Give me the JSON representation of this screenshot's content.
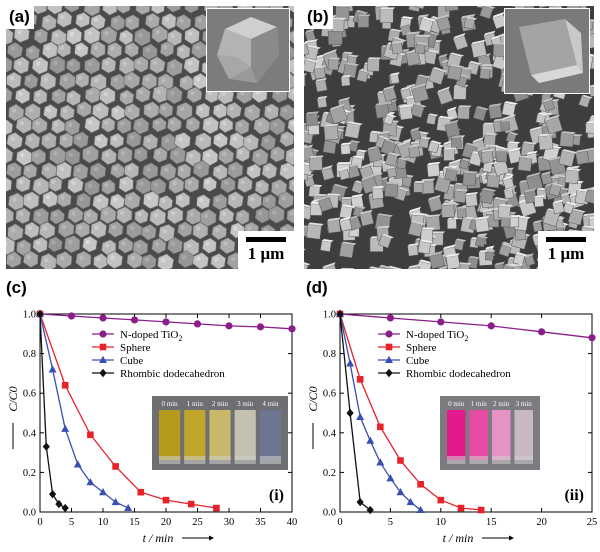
{
  "figure": {
    "panel_a": {
      "letter": "(a)",
      "scale": "1 μm"
    },
    "panel_b": {
      "letter": "(b)",
      "scale": "1 μm"
    },
    "panel_c": {
      "letter": "(c)"
    },
    "panel_d": {
      "letter": "(d)"
    }
  },
  "chart_data": [
    {
      "type": "line",
      "panel_label": "(i)",
      "xlabel": "t / min",
      "ylabel": "C/C0",
      "xlim": [
        0,
        40
      ],
      "ylim": [
        0,
        1.0
      ],
      "xticks": [
        "0",
        "5",
        "10",
        "15",
        "20",
        "25",
        "30",
        "35",
        "40"
      ],
      "yticks": [
        "0.0",
        "0.2",
        "0.4",
        "0.6",
        "0.8",
        "1.0"
      ],
      "legend_position": "top-right",
      "series": [
        {
          "name": "N-doped TiO2",
          "color": "#8b1e8b",
          "marker": "circle",
          "x": [
            0,
            5,
            10,
            15,
            20,
            25,
            30,
            35,
            40
          ],
          "y": [
            1.0,
            0.99,
            0.98,
            0.97,
            0.96,
            0.95,
            0.94,
            0.935,
            0.925
          ]
        },
        {
          "name": "Sphere",
          "color": "#e8222a",
          "marker": "square",
          "x": [
            0,
            4,
            8,
            12,
            16,
            20,
            24,
            28
          ],
          "y": [
            1.0,
            0.64,
            0.39,
            0.23,
            0.1,
            0.06,
            0.04,
            0.02
          ]
        },
        {
          "name": "Cube",
          "color": "#3a4fb4",
          "marker": "triangle",
          "x": [
            0,
            2,
            4,
            6,
            8,
            10,
            12,
            14
          ],
          "y": [
            1.0,
            0.72,
            0.42,
            0.24,
            0.15,
            0.1,
            0.05,
            0.02
          ]
        },
        {
          "name": "Rhombic dodecahedron",
          "color": "#111111",
          "marker": "diamond",
          "x": [
            0,
            1,
            2,
            3,
            4
          ],
          "y": [
            1.0,
            0.33,
            0.09,
            0.04,
            0.02
          ]
        }
      ],
      "inset": {
        "labels": [
          "0 min",
          "1 min",
          "2 min",
          "3 min",
          "4 min"
        ],
        "colors": [
          "#b59a1e",
          "#bfa52a",
          "#c9b86a",
          "#c4c0b0",
          "#6d7590"
        ],
        "background": "#6e6f72"
      }
    },
    {
      "type": "line",
      "panel_label": "(ii)",
      "xlabel": "t / min",
      "ylabel": "C/C0",
      "xlim": [
        0,
        25
      ],
      "ylim": [
        0,
        1.0
      ],
      "xticks": [
        "0",
        "5",
        "10",
        "15",
        "20",
        "25"
      ],
      "yticks": [
        "0.0",
        "0.2",
        "0.4",
        "0.6",
        "0.8",
        "1.0"
      ],
      "legend_position": "top-right",
      "series": [
        {
          "name": "N-doped TiO2",
          "color": "#8b1e8b",
          "marker": "circle",
          "x": [
            0,
            5,
            10,
            15,
            20,
            25
          ],
          "y": [
            1.0,
            0.98,
            0.96,
            0.94,
            0.91,
            0.88
          ]
        },
        {
          "name": "Sphere",
          "color": "#e8222a",
          "marker": "square",
          "x": [
            0,
            2,
            4,
            6,
            8,
            10,
            12,
            14
          ],
          "y": [
            1.0,
            0.67,
            0.43,
            0.26,
            0.14,
            0.06,
            0.02,
            0.01
          ]
        },
        {
          "name": "Cube",
          "color": "#3a4fb4",
          "marker": "triangle",
          "x": [
            0,
            1,
            2,
            3,
            4,
            5,
            6,
            7,
            8
          ],
          "y": [
            1.0,
            0.75,
            0.48,
            0.36,
            0.25,
            0.17,
            0.1,
            0.05,
            0.01
          ]
        },
        {
          "name": "Rhombic dodecahedron",
          "color": "#111111",
          "marker": "diamond",
          "x": [
            0,
            1,
            2,
            3
          ],
          "y": [
            1.0,
            0.5,
            0.05,
            0.01
          ]
        }
      ],
      "inset": {
        "labels": [
          "0 min",
          "1 min",
          "2 min",
          "3 min"
        ],
        "colors": [
          "#e31a8e",
          "#e64aa3",
          "#e592c4",
          "#c8b8c4"
        ],
        "background": "#7b7b80"
      }
    }
  ]
}
